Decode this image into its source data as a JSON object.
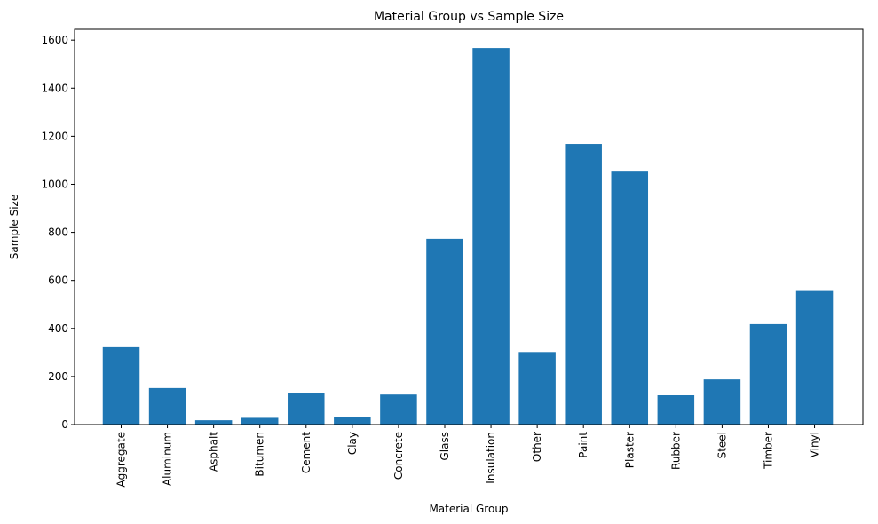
{
  "chart_data": {
    "type": "bar",
    "title": "Material Group vs Sample Size",
    "xlabel": "Material Group",
    "ylabel": "Sample Size",
    "categories": [
      "Aggregate",
      "Aluminum",
      "Asphalt",
      "Bitumen",
      "Cement",
      "Clay",
      "Concrete",
      "Glass",
      "Insulation",
      "Other",
      "Paint",
      "Plaster",
      "Rubber",
      "Steel",
      "Timber",
      "Vinyl"
    ],
    "values": [
      322,
      152,
      18,
      28,
      130,
      33,
      125,
      773,
      1567,
      302,
      1168,
      1053,
      122,
      188,
      418,
      556
    ],
    "ylim": [
      0,
      1645
    ],
    "yticks": [
      0,
      200,
      400,
      600,
      800,
      1000,
      1200,
      1400,
      1600
    ],
    "bar_color": "#1f77b4",
    "grid": false,
    "legend": "none"
  }
}
